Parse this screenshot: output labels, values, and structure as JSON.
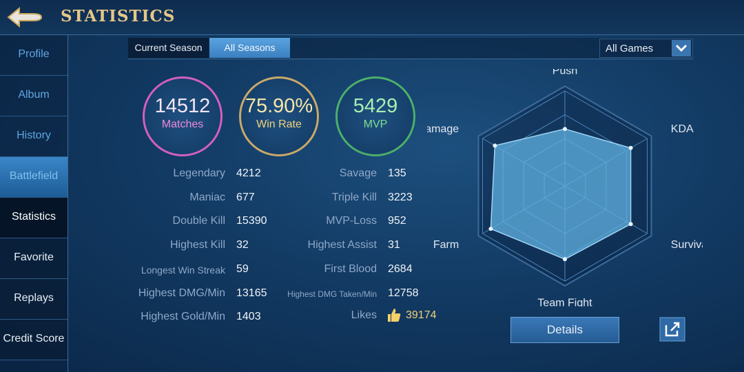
{
  "header": {
    "title": "STATISTICS"
  },
  "sidebar": [
    "Profile",
    "Album",
    "History",
    "Battlefield",
    "Statistics",
    "Favorite",
    "Replays",
    "Credit Score"
  ],
  "tabs": [
    "Current Season",
    "All Seasons"
  ],
  "filter": "All Games",
  "summary": [
    {
      "value": "14512",
      "label": "Matches"
    },
    {
      "value": "75.90%",
      "label": "Win Rate"
    },
    {
      "value": "5429",
      "label": "MVP"
    }
  ],
  "stats_left": [
    {
      "label": "Legendary",
      "value": "4212"
    },
    {
      "label": "Maniac",
      "value": "677"
    },
    {
      "label": "Double Kill",
      "value": "15390"
    },
    {
      "label": "Highest Kill",
      "value": "32"
    },
    {
      "label": "Longest Win Streak",
      "value": "59"
    },
    {
      "label": "Highest DMG/Min",
      "value": "13165"
    },
    {
      "label": "Highest Gold/Min",
      "value": "1403"
    }
  ],
  "stats_right": [
    {
      "label": "Savage",
      "value": "135"
    },
    {
      "label": "Triple Kill",
      "value": "3223"
    },
    {
      "label": "MVP-Loss",
      "value": "952"
    },
    {
      "label": "Highest Assist",
      "value": "31"
    },
    {
      "label": "First Blood",
      "value": "2684"
    },
    {
      "label": "Highest DMG Taken/Min",
      "value": "12758"
    }
  ],
  "likes": {
    "label": "Likes",
    "value": "39174"
  },
  "radar": {
    "axes": [
      "Push",
      "KDA",
      "Survival",
      "Team Fight",
      "Farm",
      "Damage"
    ],
    "values": [
      0.6,
      0.8,
      0.8,
      0.77,
      0.9,
      0.85
    ],
    "rlim": [
      0,
      1
    ]
  },
  "buttons": {
    "details": "Details"
  }
}
